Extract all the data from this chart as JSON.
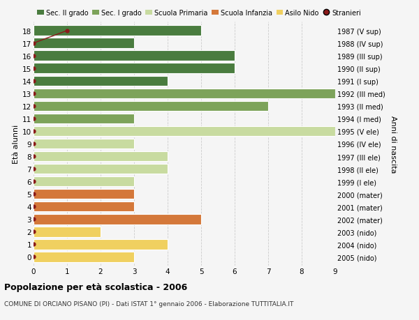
{
  "ages": [
    18,
    17,
    16,
    15,
    14,
    13,
    12,
    11,
    10,
    9,
    8,
    7,
    6,
    5,
    4,
    3,
    2,
    1,
    0
  ],
  "years": [
    "1987 (V sup)",
    "1988 (IV sup)",
    "1989 (III sup)",
    "1990 (II sup)",
    "1991 (I sup)",
    "1992 (III med)",
    "1993 (II med)",
    "1994 (I med)",
    "1995 (V ele)",
    "1996 (IV ele)",
    "1997 (III ele)",
    "1998 (II ele)",
    "1999 (I ele)",
    "2000 (mater)",
    "2001 (mater)",
    "2002 (mater)",
    "2003 (nido)",
    "2004 (nido)",
    "2005 (nido)"
  ],
  "values": [
    5,
    3,
    6,
    6,
    4,
    9,
    7,
    3,
    9,
    3,
    4,
    4,
    3,
    3,
    3,
    5,
    2,
    4,
    3
  ],
  "stranieri_x": [
    1,
    0,
    0,
    0,
    0,
    0,
    0,
    0,
    0,
    0,
    0,
    0,
    0,
    0,
    0,
    0,
    0,
    0,
    0
  ],
  "colors": {
    "sec2": "#4a7c3f",
    "sec1": "#7da35a",
    "primaria": "#c8dba0",
    "infanzia": "#d4783a",
    "nido": "#f0d060",
    "stranieri": "#8b1a1a"
  },
  "bar_colors": [
    "#4a7c3f",
    "#4a7c3f",
    "#4a7c3f",
    "#4a7c3f",
    "#4a7c3f",
    "#7da35a",
    "#7da35a",
    "#7da35a",
    "#c8dba0",
    "#c8dba0",
    "#c8dba0",
    "#c8dba0",
    "#c8dba0",
    "#d4783a",
    "#d4783a",
    "#d4783a",
    "#f0d060",
    "#f0d060",
    "#f0d060"
  ],
  "title_bold": "Popolazione per età scolastica - 2006",
  "subtitle": "COMUNE DI ORCIANO PISANO (PI) - Dati ISTAT 1° gennaio 2006 - Elaborazione TUTTITALIA.IT",
  "ylabel_left": "Età alunni",
  "ylabel_right": "Anni di nascita",
  "xlim": [
    0,
    9
  ],
  "background_color": "#f5f5f5",
  "grid_color": "#cccccc",
  "legend_labels": [
    "Sec. II grado",
    "Sec. I grado",
    "Scuola Primaria",
    "Scuola Infanzia",
    "Asilo Nido",
    "Stranieri"
  ]
}
